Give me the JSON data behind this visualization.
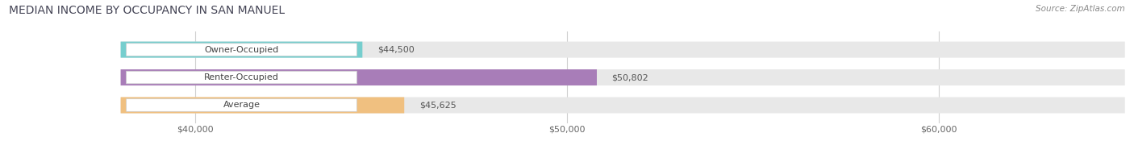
{
  "title": "MEDIAN INCOME BY OCCUPANCY IN SAN MANUEL",
  "source": "Source: ZipAtlas.com",
  "categories": [
    "Owner-Occupied",
    "Renter-Occupied",
    "Average"
  ],
  "values": [
    44500,
    50802,
    45625
  ],
  "bar_colors": [
    "#76cece",
    "#a87db8",
    "#f0c080"
  ],
  "background_color": "#ffffff",
  "bar_bg_color": "#e8e8e8",
  "xlim": [
    35000,
    65000
  ],
  "xstart": 38000,
  "xticks": [
    40000,
    50000,
    60000
  ],
  "xtick_labels": [
    "$40,000",
    "$50,000",
    "$60,000"
  ],
  "title_fontsize": 10,
  "label_fontsize": 8,
  "value_fontsize": 8,
  "source_fontsize": 7.5,
  "bar_height": 0.58,
  "figsize": [
    14.06,
    1.96
  ],
  "dpi": 100
}
